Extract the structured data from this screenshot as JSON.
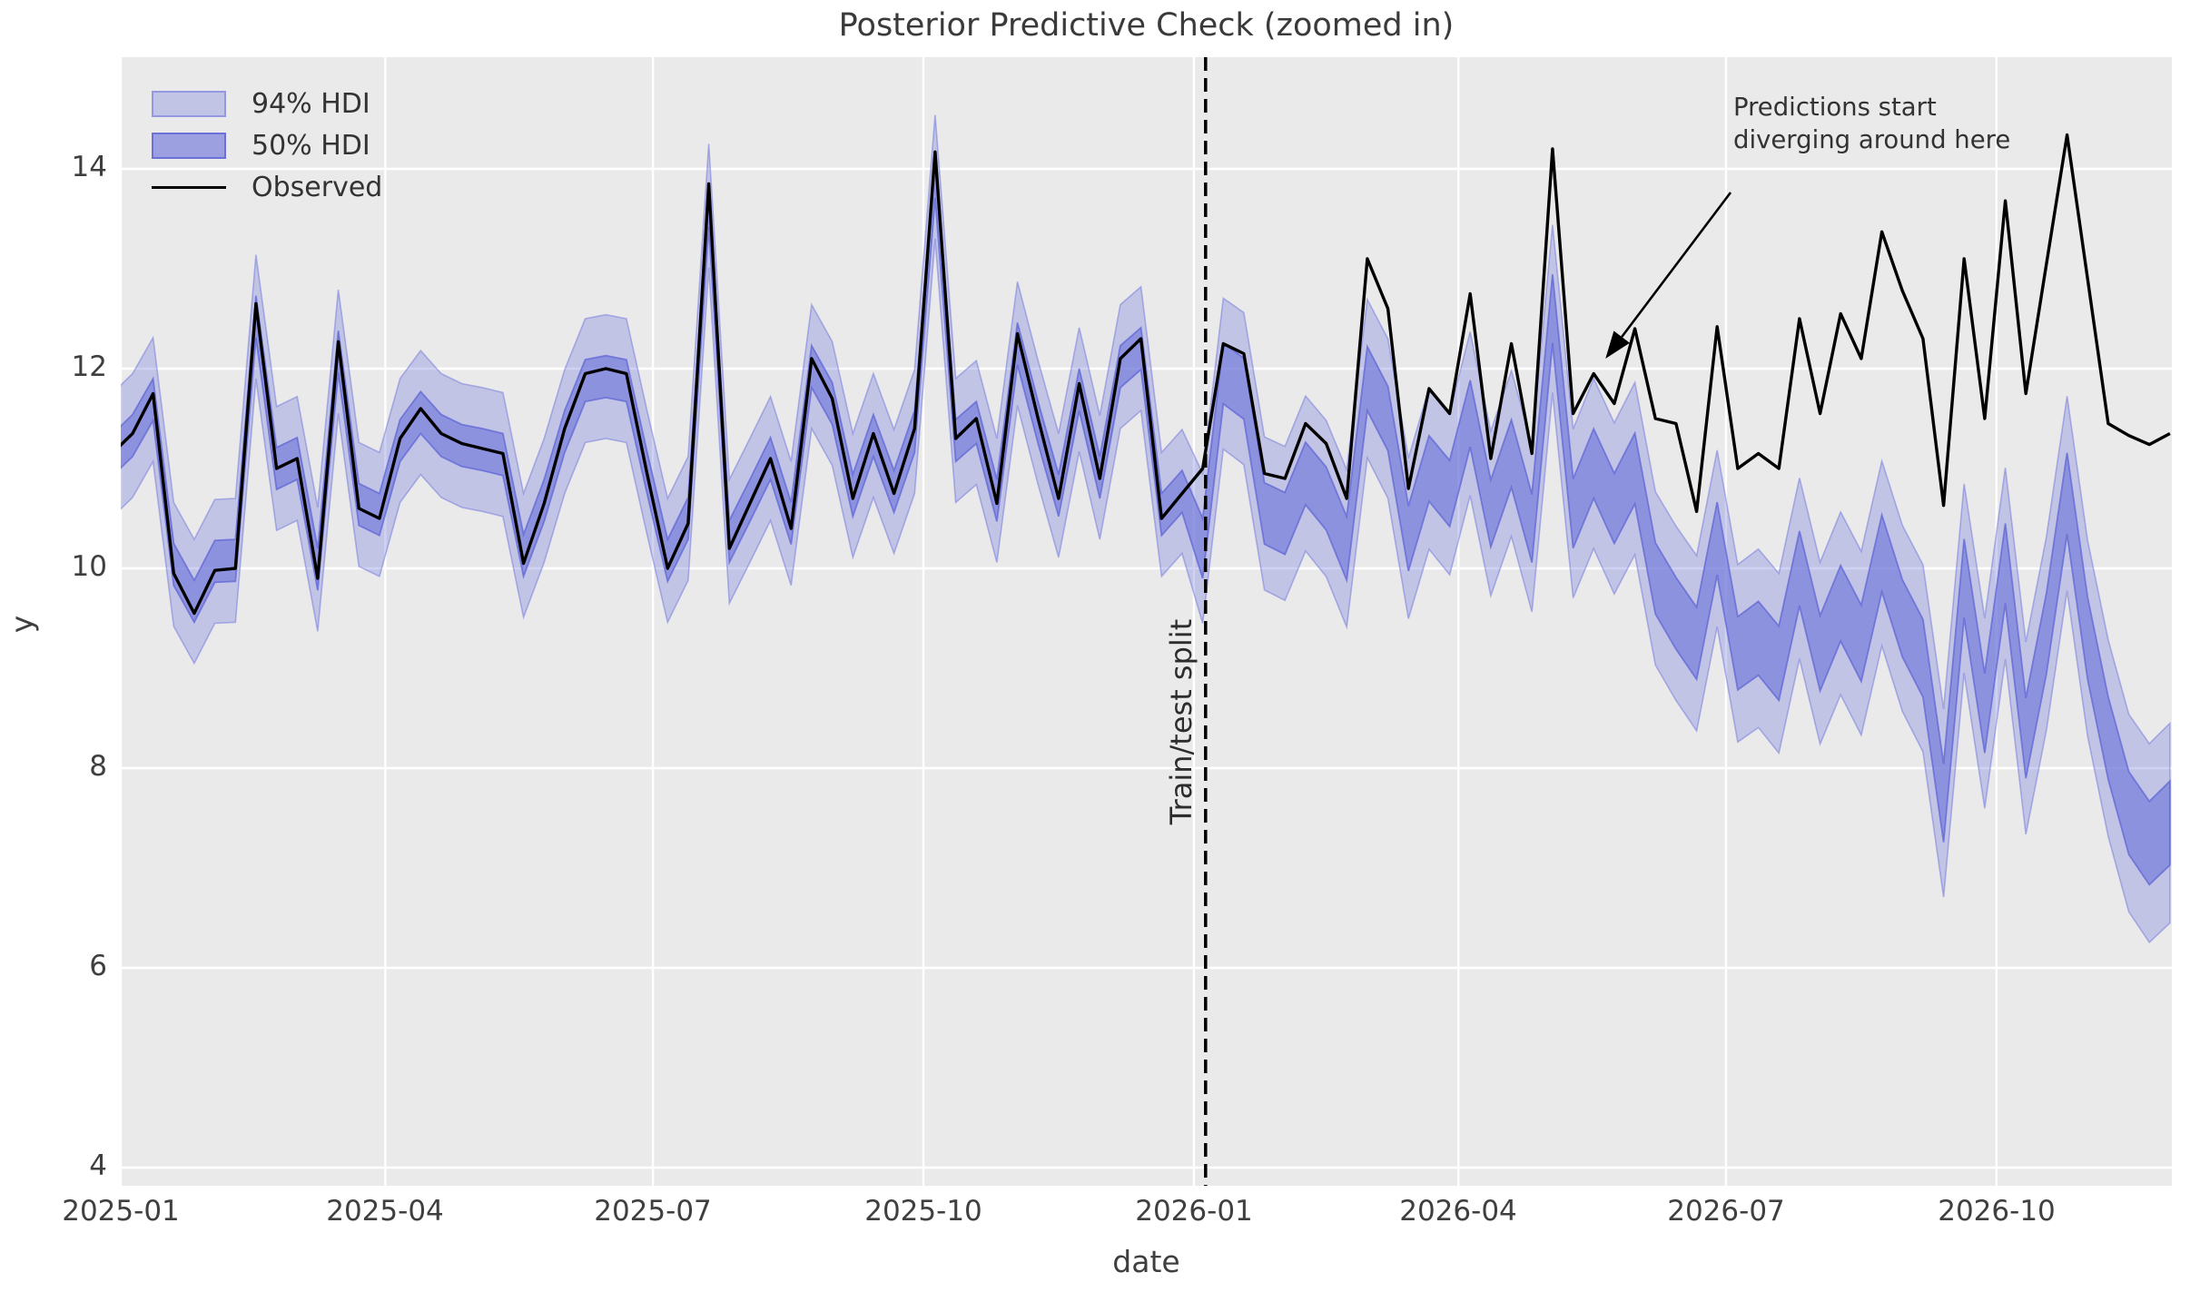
{
  "figure": {
    "title": "Posterior Predictive Check (zoomed in)",
    "x_axis_label": "date",
    "y_axis_label": "y",
    "background": "#ffffff",
    "panel_background": "#eaeaeb",
    "grid_color": "#ffffff",
    "y_ticks": [
      4,
      6,
      8,
      10,
      12,
      14
    ],
    "x_ticks": [
      "2025-01",
      "2025-04",
      "2025-07",
      "2025-10",
      "2026-01",
      "2026-04",
      "2026-07",
      "2026-10"
    ]
  },
  "legend": {
    "items": [
      {
        "label": "94% HDI",
        "type": "patch",
        "fill": "rgba(121,126,222,0.35)"
      },
      {
        "label": "50% HDI",
        "type": "patch",
        "fill": "rgba(108,114,218,0.62)"
      },
      {
        "label": "Observed",
        "type": "line",
        "color": "#000000"
      }
    ]
  },
  "split_line": {
    "label": "Train/test split",
    "date": "2026-01-05",
    "style": "dashed",
    "color": "#000000"
  },
  "annotation": {
    "line1": "Predictions start",
    "line2": "diverging around here",
    "arrow_tip_date": "2026-05-21",
    "arrow_tip_value": 12.1
  },
  "chart_data": {
    "type": "line",
    "title": "Posterior Predictive Check (zoomed in)",
    "xlabel": "date",
    "ylabel": "y",
    "ylim": [
      4,
      15.12
    ],
    "xlim": [
      "2025-01-01",
      "2026-11-29"
    ],
    "grid": true,
    "legend_position": "upper left",
    "series_start_date": "2024-12-29",
    "frequency": "weekly",
    "n_points": 101,
    "train_test_split_index": 53,
    "observed": [
      11.15,
      11.35,
      11.75,
      9.95,
      9.55,
      9.98,
      10.0,
      12.65,
      11.0,
      11.1,
      9.9,
      12.27,
      10.6,
      10.5,
      11.3,
      11.6,
      11.35,
      11.25,
      11.2,
      11.15,
      10.05,
      10.65,
      11.4,
      11.95,
      12.0,
      11.95,
      10.95,
      10.0,
      10.45,
      13.85,
      10.2,
      10.65,
      11.1,
      10.4,
      12.1,
      11.7,
      10.7,
      11.35,
      10.75,
      11.4,
      14.17,
      11.3,
      11.5,
      10.65,
      12.35,
      11.5,
      10.7,
      11.85,
      10.9,
      12.1,
      12.3,
      10.5,
      10.75,
      11.0,
      12.25,
      12.15,
      10.95,
      10.9,
      11.45,
      11.25,
      10.7,
      13.1,
      12.6,
      10.8,
      11.8,
      11.55,
      12.75,
      11.1,
      12.25,
      11.15,
      14.2,
      11.55,
      11.95,
      11.65,
      12.4,
      11.5,
      11.45,
      10.57,
      12.42,
      11.0,
      11.15,
      11.0,
      12.5,
      11.55,
      12.55,
      12.1,
      13.37,
      12.78,
      12.3,
      10.63,
      13.1,
      11.5,
      13.68,
      11.75,
      13.05,
      14.34,
      12.9,
      11.45,
      11.33,
      11.24,
      11.35
    ],
    "predicted_mean": [
      11.13,
      11.33,
      11.69,
      10.04,
      9.67,
      10.07,
      10.08,
      12.52,
      11.0,
      11.1,
      9.99,
      12.17,
      10.64,
      10.54,
      11.28,
      11.56,
      11.33,
      11.23,
      11.19,
      11.14,
      10.13,
      10.68,
      11.37,
      11.88,
      11.92,
      11.88,
      10.96,
      10.08,
      10.5,
      13.63,
      10.27,
      10.68,
      11.1,
      10.45,
      12.02,
      11.65,
      10.73,
      11.33,
      10.77,
      11.37,
      13.92,
      11.28,
      11.46,
      10.68,
      12.25,
      11.46,
      10.73,
      11.79,
      10.91,
      12.02,
      12.2,
      10.54,
      10.77,
      10.2,
      11.95,
      11.8,
      10.55,
      10.45,
      10.95,
      10.7,
      10.2,
      11.9,
      11.5,
      10.3,
      11.0,
      10.75,
      11.55,
      10.55,
      11.15,
      10.4,
      12.6,
      10.55,
      11.05,
      10.6,
      11.0,
      9.9,
      9.55,
      9.25,
      10.3,
      9.15,
      9.3,
      9.05,
      10.0,
      9.15,
      9.65,
      9.25,
      10.15,
      9.5,
      9.1,
      7.65,
      9.9,
      8.55,
      10.05,
      8.3,
      9.35,
      10.75,
      9.3,
      8.3,
      7.55,
      7.25,
      7.45
    ],
    "hdi_94_half_width_train": 0.62,
    "hdi_50_half_width_train": 0.21,
    "hdi_94_half_width_test_start": 0.75,
    "hdi_94_half_width_test_end": 1.0,
    "hdi_50_half_width_test_start": 0.3,
    "hdi_50_half_width_test_end": 0.42,
    "colors": {
      "hdi94_fill": "rgba(121,126,222,0.35)",
      "hdi94_edge": "rgba(110,116,218,0.5)",
      "hdi50_fill": "rgba(108,114,218,0.62)",
      "hdi50_edge": "rgba(95,101,212,0.75)",
      "observed": "#000000",
      "split_line": "#000000"
    }
  }
}
